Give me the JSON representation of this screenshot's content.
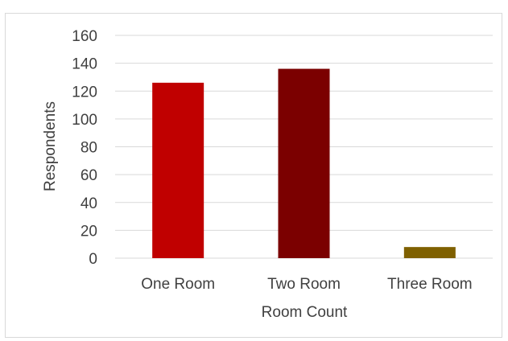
{
  "chart_data": {
    "type": "bar",
    "title": "",
    "xlabel": "Room Count",
    "ylabel": "Respondents",
    "categories": [
      "One Room",
      "Two Room",
      "Three Room"
    ],
    "values": [
      126,
      136,
      8
    ],
    "bar_colors": [
      "#c00000",
      "#7b0000",
      "#7f6000"
    ],
    "ylim": [
      0,
      160
    ],
    "yticks": [
      0,
      20,
      40,
      60,
      80,
      100,
      120,
      140,
      160
    ],
    "grid": true,
    "legend": "none"
  }
}
